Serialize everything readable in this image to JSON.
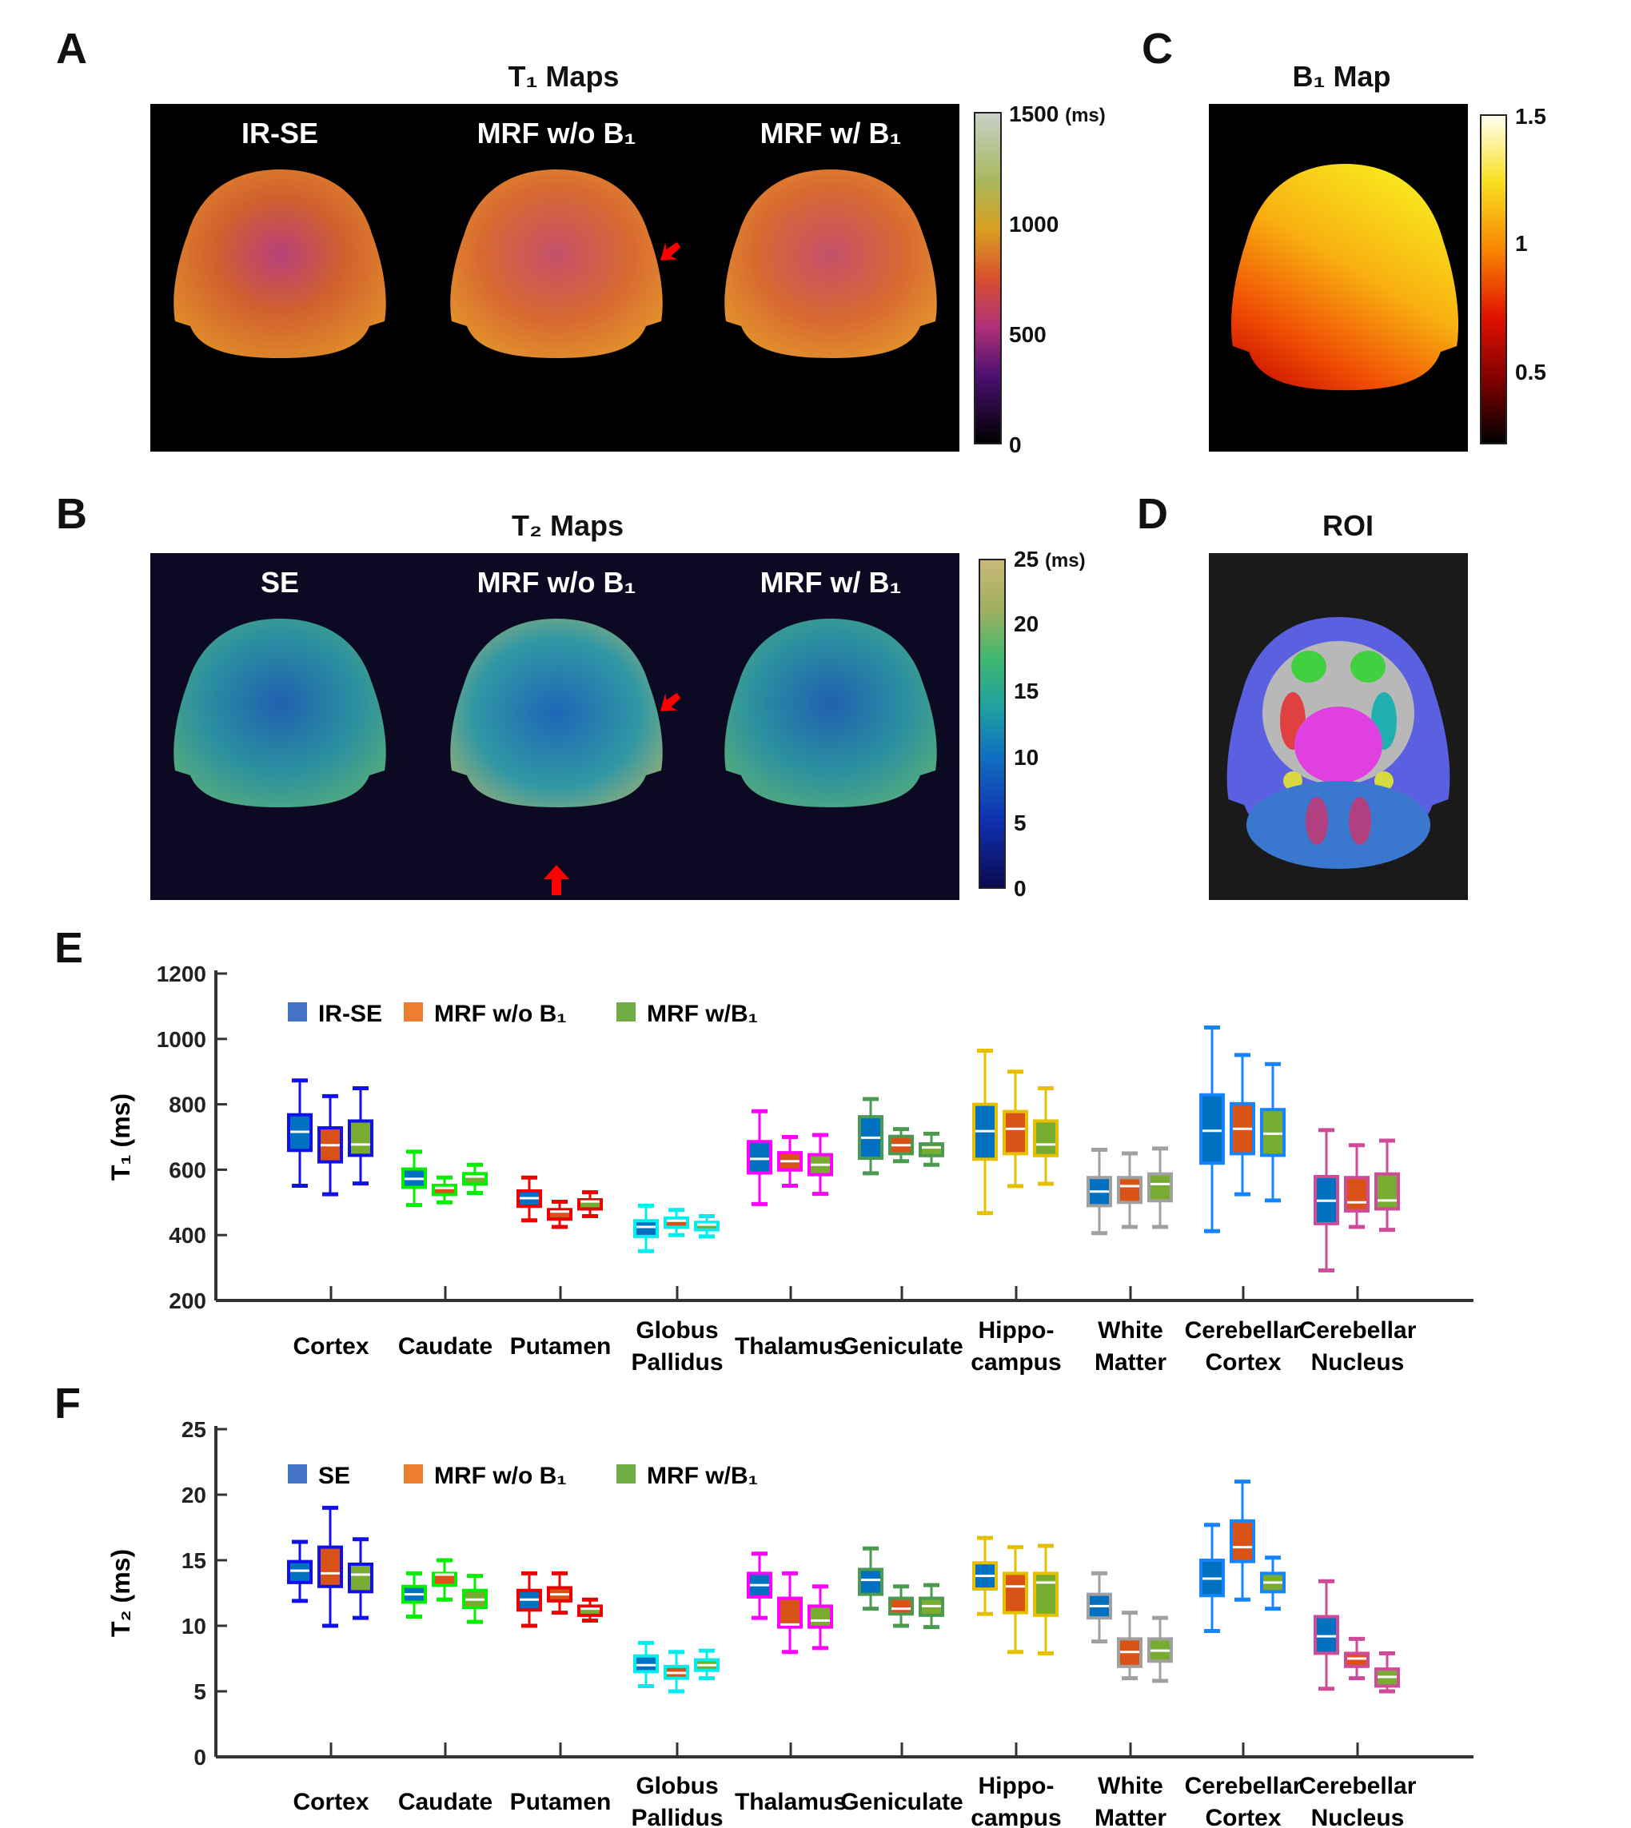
{
  "panels": {
    "A": {
      "letter": "A",
      "title": "T₁ Maps",
      "maps": [
        "IR-SE",
        "MRF w/o B₁",
        "MRF w/ B₁"
      ],
      "colorbar": {
        "labels": [
          "1500",
          "1000",
          "500",
          "0"
        ],
        "unit": "(ms)"
      }
    },
    "B": {
      "letter": "B",
      "title": "T₂ Maps",
      "maps": [
        "SE",
        "MRF w/o B₁",
        "MRF w/ B₁"
      ],
      "colorbar": {
        "labels": [
          "25",
          "20",
          "15",
          "10",
          "5",
          "0"
        ],
        "unit": "(ms)"
      }
    },
    "C": {
      "letter": "C",
      "title": "B₁ Map",
      "colorbar": {
        "labels": [
          "1.5",
          "1",
          "0.5"
        ]
      }
    },
    "D": {
      "letter": "D",
      "title": "ROI"
    },
    "E": {
      "letter": "E"
    },
    "F": {
      "letter": "F"
    }
  },
  "colors": {
    "method_fills": [
      "#0070c0",
      "#d95319",
      "#77ac30"
    ],
    "legend_squares": [
      "#4472c4",
      "#ed7d31",
      "#70ad47"
    ],
    "region_edges": [
      "#1010ee",
      "#00ee00",
      "#ee0000",
      "#00eeee",
      "#ff00ff",
      "#4a9a50",
      "#e6c000",
      "#a0a0a0",
      "#1584ff",
      "#d04a9a"
    ],
    "arrow": "#ff0000"
  },
  "chart_data": [
    {
      "type": "box",
      "panel": "E",
      "ylabel": "T₁ (ms)",
      "ylim": [
        200,
        1200
      ],
      "yticks": [
        200,
        400,
        600,
        800,
        1000,
        1200
      ],
      "legend": [
        "IR-SE",
        "MRF w/o B₁",
        "MRF w/B₁"
      ],
      "legend_position": "top-left",
      "categories": [
        [
          "Cortex"
        ],
        [
          "Caudate"
        ],
        [
          "Putamen"
        ],
        [
          "Globus",
          "Pallidus"
        ],
        [
          "Thalamus"
        ],
        [
          "Geniculate"
        ],
        [
          "Hippo-",
          "campus"
        ],
        [
          "White",
          "Matter"
        ],
        [
          "Cerebellar",
          "Cortex"
        ],
        [
          "Cerebellar",
          "Nucleus"
        ]
      ],
      "stats_order": [
        "min",
        "q1",
        "median",
        "q3",
        "max"
      ],
      "series": [
        {
          "name": "IR-SE",
          "values": [
            [
              551,
              659,
              716,
              768,
              873
            ],
            [
              492,
              546,
              572,
              602,
              655
            ],
            [
              445,
              488,
              513,
              535,
              576
            ],
            [
              351,
              396,
              425,
              444,
              490
            ],
            [
              495,
              590,
              633,
              686,
              779
            ],
            [
              589,
              635,
              698,
              762,
              816
            ],
            [
              467,
              632,
              718,
              800,
              964
            ],
            [
              406,
              490,
              533,
              576,
              661
            ],
            [
              412,
              620,
              719,
              829,
              1035
            ],
            [
              292,
              435,
              505,
              579,
              721
            ]
          ]
        },
        {
          "name": "MRF w/o B₁",
          "values": [
            [
              525,
              624,
              675,
              728,
              825
            ],
            [
              500,
              524,
              544,
              552,
              576
            ],
            [
              425,
              449,
              472,
              478,
              502
            ],
            [
              400,
              424,
              444,
              452,
              477
            ],
            [
              551,
              599,
              626,
              652,
              700
            ],
            [
              626,
              649,
              675,
              702,
              724
            ],
            [
              550,
              649,
              725,
              778,
              900
            ],
            [
              425,
              500,
              550,
              576,
              650
            ],
            [
              525,
              649,
              725,
              802,
              951
            ],
            [
              425,
              474,
              500,
              576,
              675
            ]
          ]
        },
        {
          "name": "MRF w/B₁",
          "values": [
            [
              558,
              644,
              677,
              749,
              849
            ],
            [
              529,
              556,
              579,
              588,
              615
            ],
            [
              458,
              480,
              503,
              508,
              531
            ],
            [
              396,
              416,
              432,
              439,
              458
            ],
            [
              526,
              585,
              615,
              646,
              706
            ],
            [
              615,
              643,
              668,
              679,
              710
            ],
            [
              557,
              643,
              677,
              749,
              849
            ],
            [
              425,
              505,
              556,
              587,
              665
            ],
            [
              506,
              644,
              710,
              784,
              923
            ],
            [
              416,
              480,
              506,
              587,
              689
            ]
          ]
        }
      ]
    },
    {
      "type": "box",
      "panel": "F",
      "ylabel": "T₂ (ms)",
      "ylim": [
        0,
        25
      ],
      "yticks": [
        0,
        5,
        10,
        15,
        20,
        25
      ],
      "legend": [
        "SE",
        "MRF w/o B₁",
        "MRF w/B₁"
      ],
      "legend_position": "top-left",
      "categories": [
        [
          "Cortex"
        ],
        [
          "Caudate"
        ],
        [
          "Putamen"
        ],
        [
          "Globus",
          "Pallidus"
        ],
        [
          "Thalamus"
        ],
        [
          "Geniculate"
        ],
        [
          "Hippo-",
          "campus"
        ],
        [
          "White",
          "Matter"
        ],
        [
          "Cerebellar",
          "Cortex"
        ],
        [
          "Cerebellar",
          "Nucleus"
        ]
      ],
      "stats_order": [
        "min",
        "q1",
        "median",
        "q3",
        "max"
      ],
      "series": [
        {
          "name": "SE",
          "values": [
            [
              11.9,
              13.3,
              14.2,
              14.9,
              16.4
            ],
            [
              10.7,
              11.8,
              12.4,
              13.0,
              14.0
            ],
            [
              10.0,
              11.2,
              12.0,
              12.7,
              14.0
            ],
            [
              5.4,
              6.5,
              7.0,
              7.7,
              8.7
            ],
            [
              10.6,
              12.2,
              13.1,
              14.0,
              15.5
            ],
            [
              11.3,
              12.4,
              13.5,
              14.3,
              15.9
            ],
            [
              10.9,
              12.8,
              13.8,
              14.8,
              16.7
            ],
            [
              8.8,
              10.6,
              11.5,
              12.4,
              14.0
            ],
            [
              9.6,
              12.3,
              13.6,
              15.0,
              17.7
            ],
            [
              5.2,
              7.9,
              9.2,
              10.7,
              13.4
            ]
          ]
        },
        {
          "name": "MRF w/o B₁",
          "values": [
            [
              10.0,
              13.0,
              14.0,
              16.0,
              19.0
            ],
            [
              12.0,
              13.1,
              13.9,
              14.0,
              15.0
            ],
            [
              11.0,
              11.9,
              12.4,
              12.9,
              14.0
            ],
            [
              5.0,
              6.0,
              6.4,
              6.9,
              8.0
            ],
            [
              8.0,
              9.9,
              10.1,
              12.1,
              14.0
            ],
            [
              10.0,
              10.9,
              11.3,
              12.1,
              13.0
            ],
            [
              8.0,
              11.0,
              13.0,
              14.0,
              16.0
            ],
            [
              6.0,
              6.9,
              8.0,
              9.0,
              11.0
            ],
            [
              12.0,
              14.9,
              16.0,
              18.0,
              21.0
            ],
            [
              6.0,
              6.9,
              7.5,
              7.9,
              9.0
            ]
          ]
        },
        {
          "name": "MRF w/B₁",
          "values": [
            [
              10.6,
              12.6,
              13.9,
              14.7,
              16.6
            ],
            [
              10.3,
              11.4,
              12.0,
              12.7,
              13.8
            ],
            [
              10.4,
              10.8,
              11.3,
              11.5,
              12.0
            ],
            [
              6.0,
              6.6,
              7.0,
              7.4,
              8.1
            ],
            [
              8.3,
              9.9,
              10.4,
              11.5,
              13.0
            ],
            [
              9.9,
              10.8,
              11.5,
              12.1,
              13.1
            ],
            [
              7.9,
              10.8,
              13.3,
              14.0,
              16.1
            ],
            [
              5.8,
              7.3,
              8.1,
              9.0,
              10.6
            ],
            [
              11.3,
              12.6,
              13.3,
              14.0,
              15.2
            ],
            [
              5.0,
              5.4,
              6.1,
              6.7,
              7.9
            ]
          ]
        }
      ]
    }
  ]
}
